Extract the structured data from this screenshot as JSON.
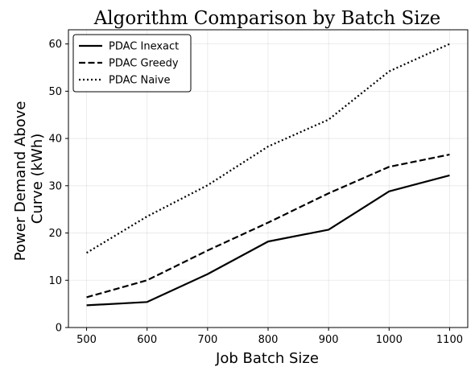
{
  "chart_data": {
    "type": "line",
    "title": "Algorithm Comparison by Batch Size",
    "xlabel": "Job Batch Size",
    "ylabel_lines": [
      "Power Demand Above",
      "Curve (kWh)"
    ],
    "x": [
      500,
      600,
      700,
      800,
      900,
      1000,
      1100
    ],
    "xlim": [
      470,
      1130
    ],
    "ylim": [
      0,
      63
    ],
    "xticks": [
      500,
      600,
      700,
      800,
      900,
      1000,
      1100
    ],
    "yticks": [
      0,
      10,
      20,
      30,
      40,
      50,
      60
    ],
    "grid": true,
    "legend_position": "top-left",
    "series": [
      {
        "name": "PDAC Inexact",
        "style": "solid",
        "color": "#000000",
        "values": [
          4.7,
          5.4,
          11.3,
          18.2,
          20.7,
          28.8,
          32.2
        ]
      },
      {
        "name": "PDAC Greedy",
        "style": "dashed",
        "color": "#000000",
        "values": [
          6.4,
          10.0,
          16.3,
          22.2,
          28.4,
          34.0,
          36.6
        ]
      },
      {
        "name": "PDAC Naive",
        "style": "dotted",
        "color": "#000000",
        "values": [
          15.8,
          23.5,
          30.1,
          38.3,
          44.0,
          54.2,
          60.0
        ]
      }
    ]
  }
}
